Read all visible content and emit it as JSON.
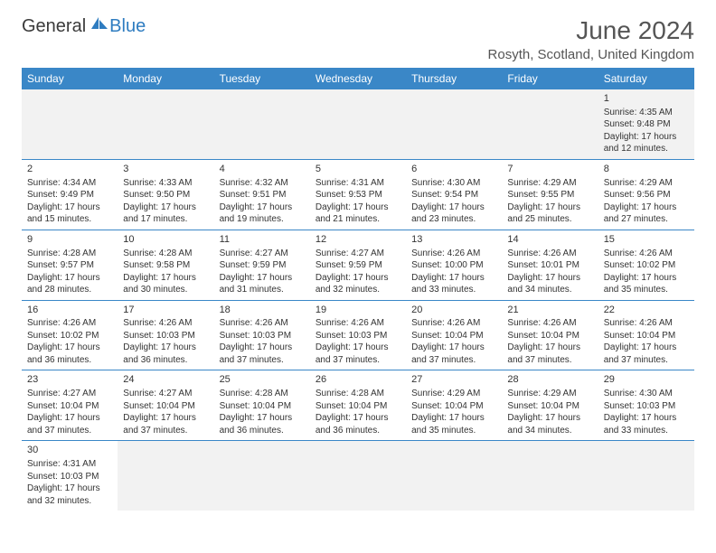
{
  "logo": {
    "text1": "General",
    "text2": "Blue"
  },
  "title": "June 2024",
  "location": "Rosyth, Scotland, United Kingdom",
  "colors": {
    "header_bg": "#3a87c7",
    "header_text": "#ffffff",
    "border": "#3a87c7",
    "title_color": "#555555",
    "text_color": "#333333",
    "empty_bg": "#f2f2f2"
  },
  "day_headers": [
    "Sunday",
    "Monday",
    "Tuesday",
    "Wednesday",
    "Thursday",
    "Friday",
    "Saturday"
  ],
  "weeks": [
    [
      null,
      null,
      null,
      null,
      null,
      null,
      {
        "day": "1",
        "sunrise": "Sunrise: 4:35 AM",
        "sunset": "Sunset: 9:48 PM",
        "daylight": "Daylight: 17 hours and 12 minutes."
      }
    ],
    [
      {
        "day": "2",
        "sunrise": "Sunrise: 4:34 AM",
        "sunset": "Sunset: 9:49 PM",
        "daylight": "Daylight: 17 hours and 15 minutes."
      },
      {
        "day": "3",
        "sunrise": "Sunrise: 4:33 AM",
        "sunset": "Sunset: 9:50 PM",
        "daylight": "Daylight: 17 hours and 17 minutes."
      },
      {
        "day": "4",
        "sunrise": "Sunrise: 4:32 AM",
        "sunset": "Sunset: 9:51 PM",
        "daylight": "Daylight: 17 hours and 19 minutes."
      },
      {
        "day": "5",
        "sunrise": "Sunrise: 4:31 AM",
        "sunset": "Sunset: 9:53 PM",
        "daylight": "Daylight: 17 hours and 21 minutes."
      },
      {
        "day": "6",
        "sunrise": "Sunrise: 4:30 AM",
        "sunset": "Sunset: 9:54 PM",
        "daylight": "Daylight: 17 hours and 23 minutes."
      },
      {
        "day": "7",
        "sunrise": "Sunrise: 4:29 AM",
        "sunset": "Sunset: 9:55 PM",
        "daylight": "Daylight: 17 hours and 25 minutes."
      },
      {
        "day": "8",
        "sunrise": "Sunrise: 4:29 AM",
        "sunset": "Sunset: 9:56 PM",
        "daylight": "Daylight: 17 hours and 27 minutes."
      }
    ],
    [
      {
        "day": "9",
        "sunrise": "Sunrise: 4:28 AM",
        "sunset": "Sunset: 9:57 PM",
        "daylight": "Daylight: 17 hours and 28 minutes."
      },
      {
        "day": "10",
        "sunrise": "Sunrise: 4:28 AM",
        "sunset": "Sunset: 9:58 PM",
        "daylight": "Daylight: 17 hours and 30 minutes."
      },
      {
        "day": "11",
        "sunrise": "Sunrise: 4:27 AM",
        "sunset": "Sunset: 9:59 PM",
        "daylight": "Daylight: 17 hours and 31 minutes."
      },
      {
        "day": "12",
        "sunrise": "Sunrise: 4:27 AM",
        "sunset": "Sunset: 9:59 PM",
        "daylight": "Daylight: 17 hours and 32 minutes."
      },
      {
        "day": "13",
        "sunrise": "Sunrise: 4:26 AM",
        "sunset": "Sunset: 10:00 PM",
        "daylight": "Daylight: 17 hours and 33 minutes."
      },
      {
        "day": "14",
        "sunrise": "Sunrise: 4:26 AM",
        "sunset": "Sunset: 10:01 PM",
        "daylight": "Daylight: 17 hours and 34 minutes."
      },
      {
        "day": "15",
        "sunrise": "Sunrise: 4:26 AM",
        "sunset": "Sunset: 10:02 PM",
        "daylight": "Daylight: 17 hours and 35 minutes."
      }
    ],
    [
      {
        "day": "16",
        "sunrise": "Sunrise: 4:26 AM",
        "sunset": "Sunset: 10:02 PM",
        "daylight": "Daylight: 17 hours and 36 minutes."
      },
      {
        "day": "17",
        "sunrise": "Sunrise: 4:26 AM",
        "sunset": "Sunset: 10:03 PM",
        "daylight": "Daylight: 17 hours and 36 minutes."
      },
      {
        "day": "18",
        "sunrise": "Sunrise: 4:26 AM",
        "sunset": "Sunset: 10:03 PM",
        "daylight": "Daylight: 17 hours and 37 minutes."
      },
      {
        "day": "19",
        "sunrise": "Sunrise: 4:26 AM",
        "sunset": "Sunset: 10:03 PM",
        "daylight": "Daylight: 17 hours and 37 minutes."
      },
      {
        "day": "20",
        "sunrise": "Sunrise: 4:26 AM",
        "sunset": "Sunset: 10:04 PM",
        "daylight": "Daylight: 17 hours and 37 minutes."
      },
      {
        "day": "21",
        "sunrise": "Sunrise: 4:26 AM",
        "sunset": "Sunset: 10:04 PM",
        "daylight": "Daylight: 17 hours and 37 minutes."
      },
      {
        "day": "22",
        "sunrise": "Sunrise: 4:26 AM",
        "sunset": "Sunset: 10:04 PM",
        "daylight": "Daylight: 17 hours and 37 minutes."
      }
    ],
    [
      {
        "day": "23",
        "sunrise": "Sunrise: 4:27 AM",
        "sunset": "Sunset: 10:04 PM",
        "daylight": "Daylight: 17 hours and 37 minutes."
      },
      {
        "day": "24",
        "sunrise": "Sunrise: 4:27 AM",
        "sunset": "Sunset: 10:04 PM",
        "daylight": "Daylight: 17 hours and 37 minutes."
      },
      {
        "day": "25",
        "sunrise": "Sunrise: 4:28 AM",
        "sunset": "Sunset: 10:04 PM",
        "daylight": "Daylight: 17 hours and 36 minutes."
      },
      {
        "day": "26",
        "sunrise": "Sunrise: 4:28 AM",
        "sunset": "Sunset: 10:04 PM",
        "daylight": "Daylight: 17 hours and 36 minutes."
      },
      {
        "day": "27",
        "sunrise": "Sunrise: 4:29 AM",
        "sunset": "Sunset: 10:04 PM",
        "daylight": "Daylight: 17 hours and 35 minutes."
      },
      {
        "day": "28",
        "sunrise": "Sunrise: 4:29 AM",
        "sunset": "Sunset: 10:04 PM",
        "daylight": "Daylight: 17 hours and 34 minutes."
      },
      {
        "day": "29",
        "sunrise": "Sunrise: 4:30 AM",
        "sunset": "Sunset: 10:03 PM",
        "daylight": "Daylight: 17 hours and 33 minutes."
      }
    ],
    [
      {
        "day": "30",
        "sunrise": "Sunrise: 4:31 AM",
        "sunset": "Sunset: 10:03 PM",
        "daylight": "Daylight: 17 hours and 32 minutes."
      },
      null,
      null,
      null,
      null,
      null,
      null
    ]
  ]
}
